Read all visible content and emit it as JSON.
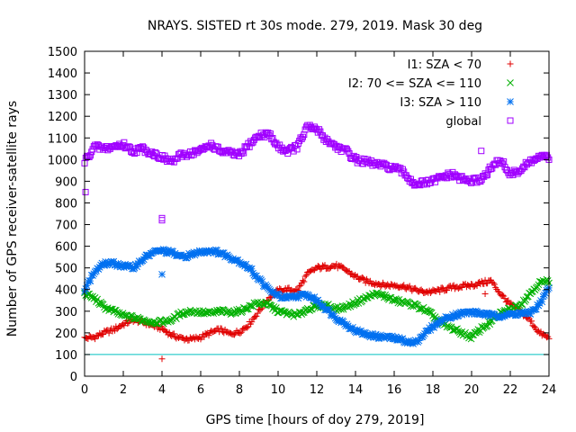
{
  "chart_data": {
    "type": "scatter",
    "title": "NRAYS. SISTED rt 30s mode. 279, 2019. Mask 30 deg",
    "xlabel": "GPS time [hours of doy 279, 2019]",
    "ylabel": "Number of GPS receiver-satellite rays",
    "xlim": [
      0,
      24
    ],
    "ylim": [
      0,
      1500
    ],
    "xticks": [
      0,
      2,
      4,
      6,
      8,
      10,
      12,
      14,
      16,
      18,
      20,
      22,
      24
    ],
    "yticks": [
      0,
      100,
      200,
      300,
      400,
      500,
      600,
      700,
      800,
      900,
      1000,
      1100,
      1200,
      1300,
      1400,
      1500
    ],
    "reference_line": {
      "y": 100,
      "color": "#00c0c0"
    },
    "legend_position": "top-right",
    "series": [
      {
        "name": "I1: SZA < 70",
        "marker": "plus",
        "color": "#e00000",
        "x": [
          0,
          0.5,
          1,
          1.5,
          2,
          2.5,
          3,
          3.5,
          4,
          4.5,
          5,
          5.5,
          6,
          6.5,
          7,
          7.5,
          8,
          8.5,
          9,
          9.5,
          10,
          10.5,
          11,
          11.5,
          12,
          12.5,
          13,
          13.5,
          14,
          14.5,
          15,
          15.5,
          16,
          16.5,
          17,
          17.5,
          18,
          18.5,
          19,
          19.5,
          20,
          20.5,
          21,
          21.5,
          22,
          22.5,
          23,
          23.5,
          24
        ],
        "y": [
          175,
          180,
          200,
          215,
          240,
          260,
          250,
          235,
          220,
          190,
          175,
          170,
          180,
          200,
          215,
          195,
          205,
          240,
          300,
          360,
          395,
          400,
          395,
          470,
          500,
          505,
          510,
          490,
          460,
          440,
          430,
          420,
          420,
          415,
          400,
          390,
          390,
          400,
          410,
          415,
          420,
          430,
          440,
          380,
          330,
          300,
          260,
          200,
          175
        ]
      },
      {
        "name": "I2: 70 <= SZA <= 110",
        "marker": "cross",
        "color": "#00b000",
        "x": [
          0,
          0.5,
          1,
          1.5,
          2,
          2.5,
          3,
          3.5,
          4,
          4.5,
          5,
          5.5,
          6,
          6.5,
          7,
          7.5,
          8,
          8.5,
          9,
          9.5,
          10,
          10.5,
          11,
          11.5,
          12,
          12.5,
          13,
          13.5,
          14,
          14.5,
          15,
          15.5,
          16,
          16.5,
          17,
          17.5,
          18,
          18.5,
          19,
          19.5,
          20,
          20.5,
          21,
          21.5,
          22,
          22.5,
          23,
          23.5,
          24
        ],
        "y": [
          380,
          360,
          320,
          300,
          280,
          270,
          260,
          250,
          250,
          260,
          290,
          300,
          295,
          290,
          300,
          295,
          300,
          320,
          340,
          330,
          300,
          290,
          280,
          310,
          320,
          330,
          310,
          320,
          340,
          360,
          380,
          370,
          350,
          340,
          330,
          310,
          280,
          240,
          220,
          200,
          180,
          220,
          250,
          290,
          310,
          330,
          380,
          430,
          440
        ]
      },
      {
        "name": "I3: SZA > 110",
        "marker": "star",
        "color": "#0070f0",
        "x": [
          0,
          0.5,
          1,
          1.5,
          2,
          2.5,
          3,
          3.5,
          4,
          4.5,
          5,
          5.5,
          6,
          6.5,
          7,
          7.5,
          8,
          8.5,
          9,
          9.5,
          10,
          10.5,
          11,
          11.5,
          12,
          12.5,
          13,
          13.5,
          14,
          14.5,
          15,
          15.5,
          16,
          16.5,
          17,
          17.5,
          18,
          18.5,
          19,
          19.5,
          20,
          20.5,
          21,
          21.5,
          22,
          22.5,
          23,
          23.5,
          24
        ],
        "y": [
          400,
          480,
          520,
          520,
          510,
          500,
          540,
          570,
          580,
          570,
          550,
          560,
          575,
          580,
          570,
          550,
          530,
          500,
          450,
          400,
          370,
          360,
          370,
          375,
          350,
          310,
          270,
          240,
          210,
          195,
          185,
          180,
          175,
          165,
          150,
          190,
          230,
          260,
          280,
          290,
          295,
          290,
          280,
          280,
          285,
          290,
          290,
          330,
          410
        ]
      },
      {
        "name": "global",
        "marker": "square",
        "color": "#a000ff",
        "x": [
          0,
          0.5,
          1,
          1.5,
          2,
          2.5,
          3,
          3.5,
          4,
          4.5,
          5,
          5.5,
          6,
          6.5,
          7,
          7.5,
          8,
          8.5,
          9,
          9.5,
          10,
          10.5,
          11,
          11.5,
          12,
          12.5,
          13,
          13.5,
          14,
          14.5,
          15,
          15.5,
          16,
          16.5,
          17,
          17.5,
          18,
          18.5,
          19,
          19.5,
          20,
          20.5,
          21,
          21.5,
          22,
          22.5,
          23,
          23.5,
          24
        ],
        "y": [
          990,
          1060,
          1050,
          1060,
          1070,
          1040,
          1050,
          1030,
          1010,
          990,
          1020,
          1030,
          1040,
          1070,
          1040,
          1030,
          1020,
          1070,
          1110,
          1120,
          1060,
          1040,
          1060,
          1150,
          1140,
          1090,
          1060,
          1040,
          1000,
          990,
          980,
          970,
          960,
          940,
          890,
          890,
          900,
          920,
          930,
          910,
          900,
          910,
          960,
          1000,
          930,
          950,
          990,
          1010,
          1010
        ]
      }
    ],
    "outliers": {
      "I1: SZA < 70": [
        [
          4.0,
          80
        ],
        [
          20.7,
          380
        ]
      ],
      "I3: SZA > 110": [
        [
          4.0,
          470
        ]
      ],
      "global": [
        [
          0.05,
          850
        ],
        [
          4.0,
          730
        ],
        [
          4.0,
          720
        ],
        [
          20.5,
          1040
        ]
      ]
    }
  }
}
